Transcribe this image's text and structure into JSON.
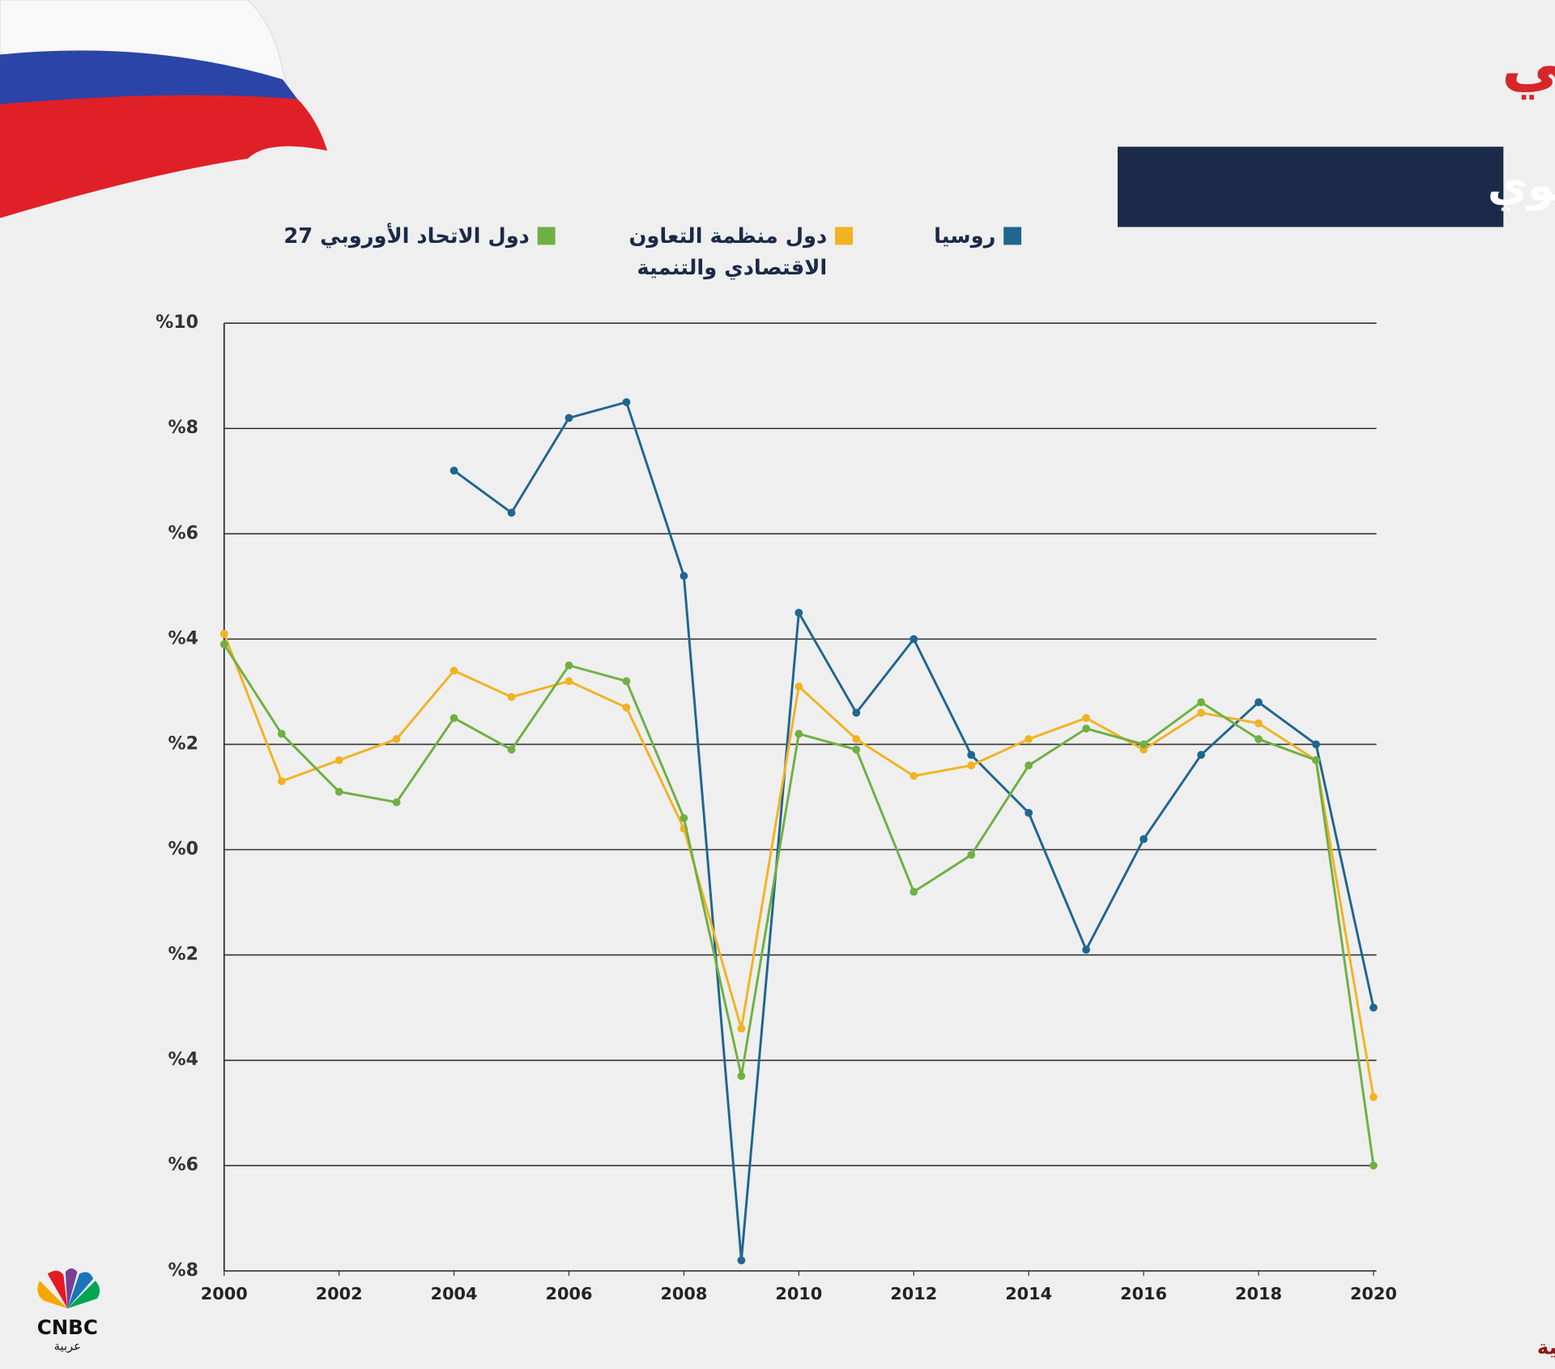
{
  "title": "إجمالي الناتج المحلي",
  "subtitle": "النمو السنوي",
  "source": "المصدر: منظمة التعاون الاقتصادي والتنمية",
  "logo": {
    "name": "CNBC",
    "subname": "عربية"
  },
  "chart_data": {
    "type": "line",
    "x": [
      2000,
      2001,
      2002,
      2003,
      2004,
      2005,
      2006,
      2007,
      2008,
      2009,
      2010,
      2011,
      2012,
      2013,
      2014,
      2015,
      2016,
      2017,
      2018,
      2019,
      2020
    ],
    "xlim": [
      2000,
      2020
    ],
    "xticks": [
      2000,
      2002,
      2004,
      2006,
      2008,
      2010,
      2012,
      2014,
      2016,
      2018,
      2020
    ],
    "ylim": [
      -8,
      10
    ],
    "yticks": [
      {
        "value": 10,
        "label": "%10"
      },
      {
        "value": 8,
        "label": "%8"
      },
      {
        "value": 6,
        "label": "%6"
      },
      {
        "value": 4,
        "label": "%4"
      },
      {
        "value": 2,
        "label": "%2"
      },
      {
        "value": 0,
        "label": "%0"
      },
      {
        "value": -2,
        "label": "%2"
      },
      {
        "value": -4,
        "label": "%4"
      },
      {
        "value": -6,
        "label": "%6"
      },
      {
        "value": -8,
        "label": "%8"
      }
    ],
    "grid": true,
    "series": [
      {
        "name": "روسيا",
        "color": "#1f6690",
        "values": [
          null,
          null,
          null,
          null,
          7.2,
          6.4,
          8.2,
          8.5,
          5.2,
          -7.8,
          4.5,
          2.6,
          4.0,
          1.8,
          0.7,
          -1.9,
          0.2,
          1.8,
          2.8,
          2.0,
          -3.0
        ]
      },
      {
        "name": "دول منظمة التعاون الاقتصادي والتنمية",
        "color": "#f0b323",
        "values": [
          4.1,
          1.3,
          1.7,
          2.1,
          3.4,
          2.9,
          3.2,
          2.7,
          0.4,
          -3.4,
          3.1,
          2.1,
          1.4,
          1.6,
          2.1,
          2.5,
          1.9,
          2.6,
          2.4,
          1.7,
          -4.7
        ]
      },
      {
        "name": "دول الاتحاد الأوروبي 27",
        "color": "#6fb043",
        "values": [
          3.9,
          2.2,
          1.1,
          0.9,
          2.5,
          1.9,
          3.5,
          3.2,
          0.6,
          -4.3,
          2.2,
          1.9,
          -0.8,
          -0.1,
          1.6,
          2.3,
          2.0,
          2.8,
          2.1,
          1.7,
          -6.0
        ]
      }
    ]
  }
}
